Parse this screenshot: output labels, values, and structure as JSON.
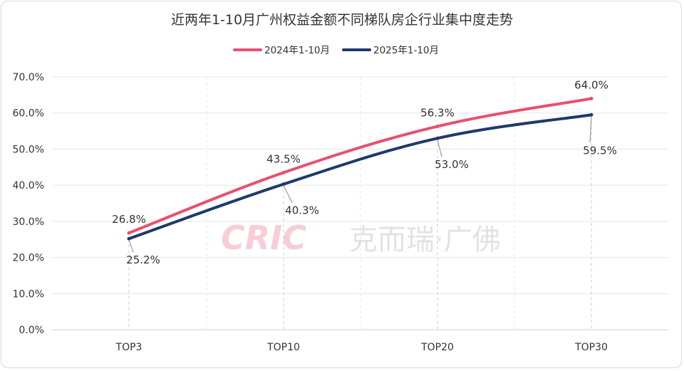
{
  "chart_data": {
    "type": "line",
    "title": "近两年1-10月广州权益金额不同梯队房企行业集中度走势",
    "categories": [
      "TOP3",
      "TOP10",
      "TOP20",
      "TOP30"
    ],
    "series": [
      {
        "name": "2024年1-10月",
        "color": "#e8506f",
        "values": [
          26.8,
          43.5,
          56.3,
          64.0
        ],
        "labels": [
          "26.8%",
          "43.5%",
          "56.3%",
          "64.0%"
        ]
      },
      {
        "name": "2025年1-10月",
        "color": "#1e3a6b",
        "values": [
          25.2,
          40.3,
          53.0,
          59.5
        ],
        "labels": [
          "25.2%",
          "40.3%",
          "53.0%",
          "59.5%"
        ]
      }
    ],
    "ylim": [
      0,
      70
    ],
    "yticks": [
      "0.0%",
      "10.0%",
      "20.0%",
      "30.0%",
      "40.0%",
      "50.0%",
      "60.0%",
      "70.0%"
    ],
    "xlabel": "",
    "ylabel": "",
    "grid": true,
    "legend": "top-center"
  },
  "watermark": {
    "logo": "CRIC",
    "text": "克而瑞·广佛"
  }
}
